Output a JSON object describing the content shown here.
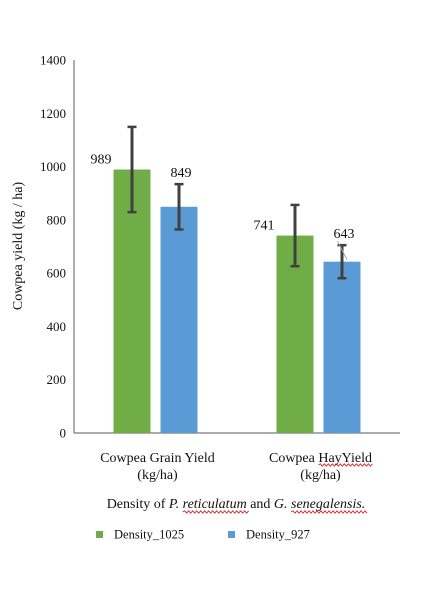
{
  "chart_data": {
    "type": "bar",
    "categories": [
      [
        "Cowpea Grain Yield",
        "(kg/ha)"
      ],
      [
        "Cowpea HayYield",
        "(kg/ha)"
      ]
    ],
    "series": [
      {
        "name": "Density_1025",
        "values": [
          989,
          741
        ],
        "error": [
          160,
          115
        ],
        "data_labels": [
          "989",
          "741"
        ],
        "color": "#70ad47"
      },
      {
        "name": "Density_927",
        "values": [
          849,
          643
        ],
        "error": [
          85,
          62
        ],
        "data_labels": [
          "849",
          "643"
        ],
        "color": "#5b9bd5"
      }
    ],
    "ylabel": "Cowpea yield  (kg / ha)",
    "xlabel": {
      "parts": [
        {
          "text": "Density of ",
          "style": "normal"
        },
        {
          "text": "P. reticulatum",
          "style": "italic"
        },
        {
          "text": " and ",
          "style": "normal"
        },
        {
          "text": "G. senegalensis.",
          "style": "italic"
        }
      ]
    },
    "ylim": [
      0,
      1400
    ],
    "yticks": [
      0,
      200,
      400,
      600,
      800,
      1000,
      1200,
      1400
    ],
    "error_bar_color": "#404040",
    "grid": false,
    "legend_position": "bottom-left"
  }
}
